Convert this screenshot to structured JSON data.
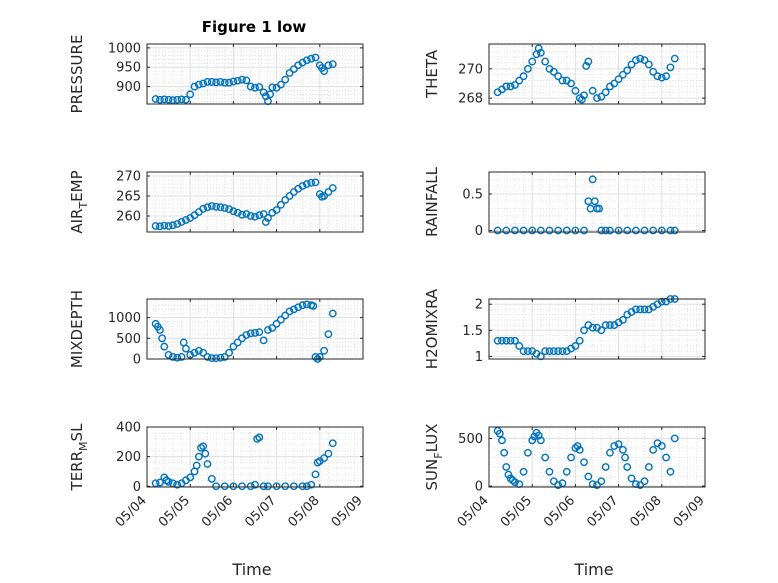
{
  "title": "Figure 1 low",
  "xlabel": "Time",
  "xticks": [
    "05/04",
    "05/05",
    "05/06",
    "05/07",
    "05/08",
    "05/09"
  ],
  "marker_color": "#0072BD",
  "chart_data": [
    {
      "type": "scatter",
      "title": "Figure 1 low",
      "ylabel": "PRESSURE",
      "xlim": [
        0,
        5
      ],
      "ylim": [
        855,
        1010
      ],
      "yticks": [
        900,
        950,
        1000
      ],
      "x": [
        0.2,
        0.3,
        0.4,
        0.5,
        0.6,
        0.7,
        0.8,
        0.9,
        1.0,
        1.1,
        1.2,
        1.3,
        1.4,
        1.5,
        1.6,
        1.7,
        1.8,
        1.9,
        2.0,
        2.1,
        2.2,
        2.3,
        2.4,
        2.5,
        2.6,
        2.7,
        2.75,
        2.8,
        2.85,
        2.9,
        3.0,
        3.1,
        3.2,
        3.3,
        3.4,
        3.5,
        3.6,
        3.7,
        3.8,
        3.9,
        4.0,
        4.05,
        4.1,
        4.2,
        4.3
      ],
      "y": [
        868,
        866,
        867,
        866,
        865,
        866,
        867,
        866,
        880,
        900,
        905,
        908,
        912,
        912,
        911,
        912,
        910,
        910,
        913,
        915,
        918,
        916,
        900,
        897,
        899,
        885,
        875,
        862,
        880,
        898,
        897,
        905,
        918,
        935,
        945,
        955,
        962,
        968,
        972,
        975,
        955,
        948,
        940,
        955,
        958
      ]
    },
    {
      "type": "scatter",
      "ylabel": "THETA",
      "xlim": [
        0,
        5
      ],
      "ylim": [
        267.6,
        271.7
      ],
      "yticks": [
        268,
        270
      ],
      "x": [
        0.2,
        0.3,
        0.4,
        0.5,
        0.6,
        0.7,
        0.8,
        0.9,
        1.0,
        1.1,
        1.15,
        1.2,
        1.3,
        1.4,
        1.5,
        1.6,
        1.7,
        1.8,
        1.9,
        2.0,
        2.1,
        2.15,
        2.2,
        2.25,
        2.3,
        2.4,
        2.5,
        2.6,
        2.7,
        2.8,
        2.9,
        3.0,
        3.1,
        3.2,
        3.3,
        3.4,
        3.5,
        3.6,
        3.7,
        3.8,
        3.9,
        4.0,
        4.1,
        4.2,
        4.3
      ],
      "y": [
        268.4,
        268.6,
        268.8,
        268.8,
        268.9,
        269.2,
        269.5,
        270.0,
        270.5,
        271.0,
        271.4,
        271.1,
        270.5,
        270.0,
        269.8,
        269.5,
        269.2,
        269.2,
        269.0,
        268.5,
        268.0,
        267.9,
        268.2,
        270.2,
        270.5,
        268.5,
        268.0,
        268.1,
        268.4,
        268.8,
        269.0,
        269.3,
        269.6,
        269.9,
        270.3,
        270.6,
        270.7,
        270.6,
        270.3,
        269.8,
        269.5,
        269.4,
        269.5,
        270.1,
        270.7
      ]
    },
    {
      "type": "scatter",
      "ylabel": "AIR_TEMP",
      "ylabel_parts": [
        "AIR",
        "T",
        "EMP"
      ],
      "xlim": [
        0,
        5
      ],
      "ylim": [
        256,
        271
      ],
      "yticks": [
        260,
        265,
        270
      ],
      "x": [
        0.2,
        0.3,
        0.4,
        0.5,
        0.6,
        0.7,
        0.8,
        0.9,
        1.0,
        1.1,
        1.2,
        1.3,
        1.4,
        1.5,
        1.6,
        1.7,
        1.8,
        1.9,
        2.0,
        2.1,
        2.2,
        2.3,
        2.4,
        2.5,
        2.6,
        2.7,
        2.75,
        2.8,
        2.9,
        3.0,
        3.1,
        3.2,
        3.3,
        3.4,
        3.5,
        3.6,
        3.7,
        3.8,
        3.9,
        4.0,
        4.05,
        4.1,
        4.2,
        4.3
      ],
      "y": [
        257.5,
        257.4,
        257.6,
        257.5,
        257.7,
        258.0,
        258.5,
        259.0,
        259.5,
        260.2,
        261.0,
        261.8,
        262.2,
        262.5,
        262.3,
        262.2,
        262.0,
        261.7,
        261.2,
        260.8,
        260.3,
        260.5,
        260.0,
        259.8,
        260.2,
        260.5,
        258.5,
        259.5,
        260.8,
        261.5,
        262.8,
        264.0,
        265.0,
        266.0,
        266.8,
        267.5,
        268.0,
        268.3,
        268.4,
        265.5,
        264.8,
        265.0,
        266.0,
        267.0
      ]
    },
    {
      "type": "scatter",
      "ylabel": "RAINFALL",
      "xlim": [
        0,
        5
      ],
      "ylim": [
        -0.02,
        0.8
      ],
      "yticks": [
        0,
        0.5
      ],
      "x": [
        0.2,
        0.4,
        0.6,
        0.8,
        1.0,
        1.2,
        1.4,
        1.6,
        1.8,
        2.0,
        2.2,
        2.3,
        2.35,
        2.4,
        2.45,
        2.5,
        2.55,
        2.6,
        2.7,
        2.8,
        3.0,
        3.2,
        3.4,
        3.6,
        3.8,
        4.0,
        4.2,
        4.3
      ],
      "y": [
        0,
        0,
        0,
        0,
        0,
        0,
        0,
        0,
        0,
        0,
        0,
        0.4,
        0.3,
        0.7,
        0.4,
        0.3,
        0.3,
        0,
        0,
        0,
        0,
        0,
        0,
        0,
        0,
        0,
        0,
        0
      ]
    },
    {
      "type": "scatter",
      "ylabel": "MIXDEPTH",
      "xlim": [
        0,
        5
      ],
      "ylim": [
        0,
        1450
      ],
      "yticks": [
        0,
        500,
        1000
      ],
      "x": [
        0.2,
        0.25,
        0.3,
        0.35,
        0.4,
        0.5,
        0.6,
        0.7,
        0.8,
        0.85,
        0.9,
        1.0,
        1.1,
        1.2,
        1.3,
        1.4,
        1.5,
        1.6,
        1.7,
        1.8,
        1.9,
        2.0,
        2.1,
        2.2,
        2.3,
        2.4,
        2.5,
        2.6,
        2.7,
        2.8,
        2.9,
        3.0,
        3.1,
        3.2,
        3.3,
        3.4,
        3.5,
        3.6,
        3.7,
        3.8,
        3.85,
        3.9,
        3.95,
        4.0,
        4.1,
        4.2,
        4.3
      ],
      "y": [
        850,
        780,
        700,
        500,
        300,
        100,
        50,
        30,
        50,
        400,
        250,
        100,
        150,
        200,
        150,
        50,
        20,
        20,
        30,
        50,
        150,
        300,
        400,
        500,
        580,
        620,
        630,
        650,
        450,
        700,
        750,
        850,
        950,
        1050,
        1150,
        1200,
        1250,
        1300,
        1320,
        1300,
        1280,
        50,
        0,
        50,
        200,
        600,
        1100
      ]
    },
    {
      "type": "scatter",
      "ylabel": "H2OMIXRA",
      "xlim": [
        0,
        5
      ],
      "ylim": [
        0.95,
        2.1
      ],
      "yticks": [
        1,
        1.5,
        2
      ],
      "x": [
        0.2,
        0.3,
        0.4,
        0.5,
        0.6,
        0.7,
        0.8,
        0.9,
        1.0,
        1.1,
        1.2,
        1.3,
        1.4,
        1.5,
        1.6,
        1.7,
        1.8,
        1.9,
        2.0,
        2.1,
        2.2,
        2.3,
        2.4,
        2.5,
        2.6,
        2.7,
        2.8,
        2.9,
        3.0,
        3.1,
        3.2,
        3.3,
        3.4,
        3.5,
        3.6,
        3.7,
        3.8,
        3.9,
        4.0,
        4.1,
        4.2,
        4.3
      ],
      "y": [
        1.3,
        1.3,
        1.3,
        1.3,
        1.3,
        1.2,
        1.1,
        1.1,
        1.1,
        1.05,
        1.0,
        1.1,
        1.1,
        1.1,
        1.1,
        1.1,
        1.1,
        1.15,
        1.2,
        1.3,
        1.5,
        1.6,
        1.55,
        1.55,
        1.5,
        1.6,
        1.6,
        1.6,
        1.65,
        1.7,
        1.8,
        1.85,
        1.9,
        1.9,
        1.9,
        1.9,
        1.95,
        2.0,
        2.05,
        2.05,
        2.1,
        2.1
      ]
    },
    {
      "type": "scatter",
      "ylabel": "TERR_MSL",
      "ylabel_parts": [
        "TERR",
        "M",
        "SL"
      ],
      "xlim": [
        0,
        5
      ],
      "ylim": [
        -5,
        400
      ],
      "yticks": [
        0,
        200,
        400
      ],
      "x": [
        0.2,
        0.3,
        0.4,
        0.45,
        0.5,
        0.6,
        0.7,
        0.8,
        0.9,
        1.0,
        1.1,
        1.15,
        1.2,
        1.25,
        1.3,
        1.35,
        1.4,
        1.5,
        1.6,
        1.8,
        2.0,
        2.2,
        2.4,
        2.5,
        2.55,
        2.6,
        2.7,
        2.8,
        3.0,
        3.2,
        3.4,
        3.6,
        3.7,
        3.8,
        3.9,
        3.95,
        4.0,
        4.1,
        4.2,
        4.3
      ],
      "y": [
        20,
        25,
        60,
        40,
        30,
        20,
        10,
        20,
        40,
        60,
        100,
        140,
        200,
        260,
        270,
        220,
        150,
        50,
        0,
        0,
        0,
        0,
        0,
        10,
        320,
        330,
        0,
        0,
        0,
        0,
        0,
        0,
        0,
        10,
        80,
        160,
        170,
        190,
        220,
        290
      ]
    },
    {
      "type": "scatter",
      "ylabel": "SUN_FLUX",
      "ylabel_parts": [
        "SUN",
        "F",
        "LUX"
      ],
      "xlim": [
        0,
        5
      ],
      "ylim": [
        -10,
        620
      ],
      "yticks": [
        0,
        500
      ],
      "x": [
        0.2,
        0.25,
        0.3,
        0.35,
        0.4,
        0.45,
        0.5,
        0.55,
        0.6,
        0.7,
        0.8,
        0.9,
        1.0,
        1.05,
        1.1,
        1.15,
        1.2,
        1.3,
        1.4,
        1.5,
        1.6,
        1.7,
        1.8,
        1.9,
        2.0,
        2.05,
        2.1,
        2.2,
        2.3,
        2.4,
        2.5,
        2.6,
        2.7,
        2.8,
        2.9,
        3.0,
        3.1,
        3.15,
        3.2,
        3.3,
        3.4,
        3.5,
        3.6,
        3.7,
        3.8,
        3.9,
        4.0,
        4.1,
        4.2,
        4.3
      ],
      "y": [
        580,
        550,
        480,
        350,
        200,
        120,
        80,
        60,
        40,
        20,
        150,
        350,
        480,
        520,
        560,
        530,
        480,
        300,
        150,
        50,
        10,
        30,
        150,
        300,
        400,
        420,
        380,
        250,
        100,
        20,
        10,
        50,
        200,
        350,
        420,
        440,
        380,
        300,
        200,
        80,
        20,
        10,
        50,
        200,
        380,
        450,
        420,
        300,
        150,
        500
      ]
    }
  ]
}
